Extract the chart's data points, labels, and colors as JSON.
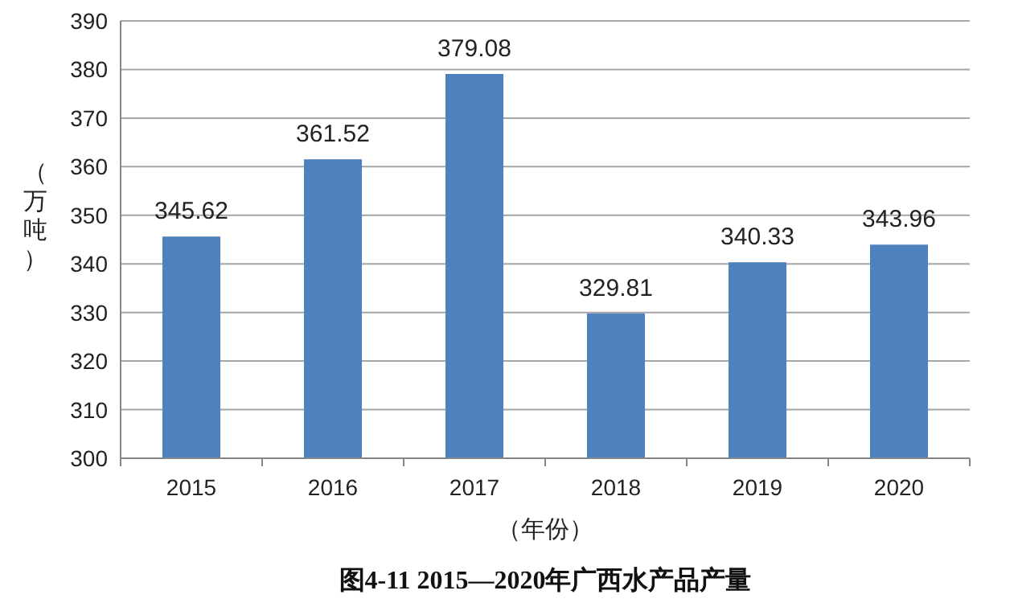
{
  "chart_data": {
    "type": "bar",
    "title": "图4-11 2015—2020年广西水产品产量",
    "xlabel": "（年份）",
    "ylabel": "（万吨）",
    "categories": [
      "2015",
      "2016",
      "2017",
      "2018",
      "2019",
      "2020"
    ],
    "values": [
      345.62,
      361.52,
      379.08,
      329.81,
      340.33,
      343.96
    ],
    "color": "#4f81bd",
    "ylim": [
      300,
      390
    ],
    "yticks": [
      300,
      310,
      320,
      330,
      340,
      350,
      360,
      370,
      380,
      390
    ],
    "grid": "y",
    "data_labels": true
  }
}
